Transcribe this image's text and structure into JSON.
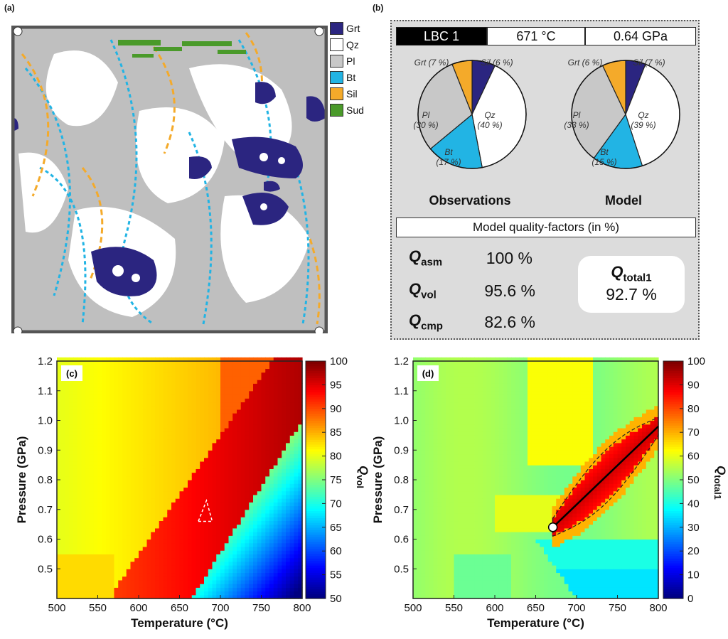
{
  "panel_labels": {
    "a": "(a)",
    "b": "(b)",
    "c": "(c)",
    "d": "(d)"
  },
  "legend": [
    {
      "label": "Grt",
      "color": "#2b2580"
    },
    {
      "label": "Qz",
      "color": "#ffffff"
    },
    {
      "label": "Pl",
      "color": "#c8c8c8"
    },
    {
      "label": "Bt",
      "color": "#22b4e4"
    },
    {
      "label": "Sil",
      "color": "#f4aa2a"
    },
    {
      "label": "Sud",
      "color": "#4a9a2a"
    }
  ],
  "header": {
    "sample": "LBC 1",
    "temperature": "671 °C",
    "pressure": "0.64 GPa"
  },
  "pie_titles": {
    "obs": "Observations",
    "model": "Model"
  },
  "quality_title": "Model quality-factors (in %)",
  "quality": {
    "asm": {
      "symbol": "Q",
      "sub": "asm",
      "value": "100 %"
    },
    "vol": {
      "symbol": "Q",
      "sub": "vol",
      "value": "95.6 %"
    },
    "cmp": {
      "symbol": "Q",
      "sub": "cmp",
      "value": "82.6 %"
    },
    "total": {
      "symbol": "Q",
      "sub": "total1",
      "value": "92.7 %"
    }
  },
  "chart_data": [
    {
      "type": "pie",
      "title": "Observations",
      "slices": [
        {
          "name": "Grt",
          "text": "Grt (7 %)",
          "value": 7,
          "color": "#2b2580"
        },
        {
          "name": "Qz",
          "text": "Qz (40 %)",
          "value": 40,
          "color": "#ffffff"
        },
        {
          "name": "Bt",
          "text": "Bt (17 %)",
          "value": 17,
          "color": "#22b4e4"
        },
        {
          "name": "Pl",
          "text": "Pl (30 %)",
          "value": 30,
          "color": "#c8c8c8"
        },
        {
          "name": "Sil",
          "text": "Sil (6 %)",
          "value": 6,
          "color": "#f4aa2a"
        }
      ]
    },
    {
      "type": "pie",
      "title": "Model",
      "slices": [
        {
          "name": "Grt",
          "text": "Grt (6 %)",
          "value": 6,
          "color": "#2b2580"
        },
        {
          "name": "Qz",
          "text": "Qz (39 %)",
          "value": 39,
          "color": "#ffffff"
        },
        {
          "name": "Bt",
          "text": "Bt (15 %)",
          "value": 15,
          "color": "#22b4e4"
        },
        {
          "name": "Pl",
          "text": "Pl (33 %)",
          "value": 33,
          "color": "#c8c8c8"
        },
        {
          "name": "Sil",
          "text": "Sil (7 %)",
          "value": 7,
          "color": "#f4aa2a"
        }
      ]
    },
    {
      "type": "heatmap",
      "panel": "(c)",
      "xlabel": "Temperature (°C)",
      "ylabel": "Pressure (GPa)",
      "xlim": [
        500,
        800
      ],
      "ylim": [
        0.4,
        1.2
      ],
      "xticks": [
        "500",
        "550",
        "600",
        "650",
        "700",
        "750",
        "800"
      ],
      "yticks": [
        "0.5",
        "0.6",
        "0.7",
        "0.8",
        "0.9",
        "1.0",
        "1.1",
        "1.2"
      ],
      "colorbar": {
        "label": "Q",
        "sub": "vol",
        "range": [
          50,
          100
        ],
        "ticks": [
          "50",
          "55",
          "60",
          "65",
          "70",
          "75",
          "80",
          "85",
          "90",
          "95",
          "100"
        ]
      },
      "field": "Qvol",
      "highlight_triangle": [
        [
          673,
          0.66
        ],
        [
          690,
          0.66
        ],
        [
          683,
          0.73
        ]
      ]
    },
    {
      "type": "heatmap",
      "panel": "(d)",
      "xlabel": "Temperature (°C)",
      "ylabel": "Pressure (GPa)",
      "xlim": [
        500,
        800
      ],
      "ylim": [
        0.4,
        1.2
      ],
      "xticks": [
        "500",
        "550",
        "600",
        "650",
        "700",
        "750",
        "800"
      ],
      "yticks": [
        "0.5",
        "0.6",
        "0.7",
        "0.8",
        "0.9",
        "1.0",
        "1.1",
        "1.2"
      ],
      "colorbar": {
        "label": "Q",
        "sub": "total1",
        "range": [
          0,
          100
        ],
        "ticks": [
          "0",
          "10",
          "20",
          "30",
          "40",
          "50",
          "60",
          "70",
          "80",
          "90",
          "100"
        ]
      },
      "field": "Qtotal1",
      "best_fit_line": [
        [
          671,
          0.64
        ],
        [
          800,
          0.98
        ]
      ],
      "best_point": [
        671,
        0.64
      ]
    }
  ]
}
